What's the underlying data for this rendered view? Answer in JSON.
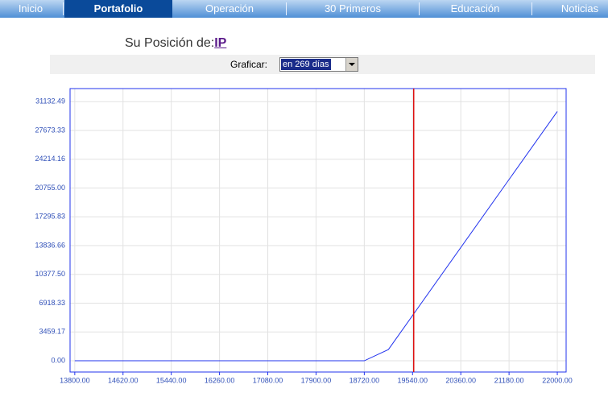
{
  "nav": {
    "tabs": [
      "Inicio",
      "Portafolio",
      "Operación",
      "30 Primeros",
      "Educación",
      "Noticias"
    ],
    "active": 1
  },
  "header": {
    "label": "Su Posición de:",
    "symbol": "IP"
  },
  "form": {
    "label": "Graficar:",
    "selected": "en 269 días"
  },
  "chart_data": {
    "type": "line",
    "x": [
      13800,
      18720,
      19130,
      22000
    ],
    "series": [
      {
        "color": "#2233ee",
        "values": [
          0,
          0,
          1350,
          29950
        ]
      }
    ],
    "vline": {
      "x": 19560,
      "color": "#dd1111"
    },
    "xlim": [
      13720,
      22150
    ],
    "ylim": [
      -1350,
      32700
    ],
    "xticks": [
      {
        "value": 13800,
        "label": "13800.00"
      },
      {
        "value": 14620,
        "label": "14620.00"
      },
      {
        "value": 15440,
        "label": "15440.00"
      },
      {
        "value": 16260,
        "label": "16260.00"
      },
      {
        "value": 17080,
        "label": "17080.00"
      },
      {
        "value": 17900,
        "label": "17900.00"
      },
      {
        "value": 18720,
        "label": "18720.00"
      },
      {
        "value": 19540,
        "label": "19540.00"
      },
      {
        "value": 20360,
        "label": "20360.00"
      },
      {
        "value": 21180,
        "label": "21180.00"
      },
      {
        "value": 22000,
        "label": "22000.00"
      }
    ],
    "yticks": [
      {
        "value": 0,
        "label": "0.00"
      },
      3459.17,
      6918.33,
      {
        "value": 10377.5,
        "label": "10377.50"
      },
      13836.66,
      17295.83,
      {
        "value": 20755,
        "label": "20755.00"
      },
      24214.16,
      27673.33,
      31132.49
    ],
    "grid": true
  }
}
